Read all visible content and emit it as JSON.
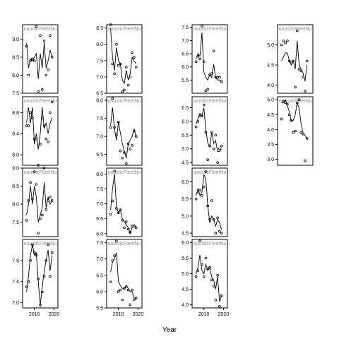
{
  "chart_data": {
    "type": "scatter",
    "xlabel": "Year",
    "panels": [
      {
        "row": 0,
        "col": 0,
        "title": "oousticFleetNu",
        "xlim": [
          2004,
          2022
        ],
        "ylim": [
          7.5,
          9.4
        ],
        "yticks": [
          "7.5",
          "8.0",
          "8.5",
          "9.0"
        ],
        "xticks": [],
        "yticks_side": "left",
        "x": [
          2006,
          2007,
          2008,
          2009,
          2010,
          2011,
          2012,
          2013,
          2014,
          2015,
          2016,
          2017,
          2018,
          2019
        ],
        "points": [
          8.8,
          8.0,
          8.4,
          8.45,
          8.4,
          9.35,
          7.55,
          9.1,
          7.6,
          8.95,
          8.0,
          8.15,
          9.1,
          8.5
        ],
        "fit": [
          8.9,
          8.2,
          8.45,
          8.4,
          8.5,
          8.6,
          7.9,
          8.6,
          8.2,
          8.9,
          8.2,
          8.4,
          8.7,
          8.5
        ]
      },
      {
        "row": 0,
        "col": 1,
        "title": "oousticFleetNu",
        "xlim": [
          2004,
          2022
        ],
        "ylim": [
          6.5,
          8.6
        ],
        "yticks": [
          "6.5",
          "7.0",
          "7.5",
          "8.0",
          "8.5"
        ],
        "xticks": [],
        "yticks_side": "left",
        "x": [
          2006,
          2007,
          2008,
          2009,
          2010,
          2011,
          2012,
          2013,
          2014,
          2015,
          2016,
          2017,
          2018,
          2019
        ],
        "points": [
          8.6,
          7.4,
          7.1,
          8.0,
          7.35,
          7.4,
          6.55,
          6.6,
          7.3,
          6.75,
          7.0,
          7.75,
          7.6,
          7.3
        ],
        "fit": [
          8.5,
          7.6,
          7.2,
          7.9,
          7.5,
          7.4,
          6.9,
          6.8,
          7.2,
          6.9,
          7.1,
          7.6,
          7.5,
          7.4
        ]
      },
      {
        "row": 0,
        "col": 2,
        "title": "oousticFleetNu",
        "xlim": [
          2004,
          2022
        ],
        "ylim": [
          5.0,
          7.6
        ],
        "yticks": [
          "5.5",
          "6.0",
          "6.5",
          "7.0",
          "7.5"
        ],
        "xticks": [],
        "yticks_side": "left",
        "x": [
          2006,
          2007,
          2008,
          2009,
          2010,
          2011,
          2012,
          2013,
          2014,
          2015,
          2016,
          2017,
          2018,
          2019
        ],
        "points": [
          6.2,
          6.4,
          6.3,
          7.55,
          6.2,
          5.1,
          5.15,
          5.7,
          5.75,
          6.6,
          5.6,
          5.6,
          5.6,
          5.45
        ],
        "fit": [
          6.3,
          6.5,
          6.4,
          7.3,
          5.8,
          5.6,
          5.5,
          5.7,
          5.6,
          6.1,
          5.6,
          5.5,
          5.5,
          5.4
        ]
      },
      {
        "row": 0,
        "col": 3,
        "title": "oousticFleetNu",
        "xlim": [
          2004,
          2022
        ],
        "ylim": [
          3.8,
          5.5
        ],
        "yticks": [
          "4.0",
          "4.5",
          "5.0"
        ],
        "xticks": [],
        "yticks_side": "left",
        "x": [
          2006,
          2007,
          2008,
          2009,
          2010,
          2011,
          2012,
          2013,
          2014,
          2015,
          2016,
          2017,
          2018,
          2019
        ],
        "points": [
          5.0,
          5.1,
          5.05,
          5.1,
          4.6,
          4.55,
          4.6,
          3.95,
          5.35,
          4.4,
          4.35,
          4.2,
          3.85,
          4.6
        ],
        "fit": [
          4.6,
          4.7,
          4.8,
          4.8,
          4.6,
          4.5,
          4.6,
          4.4,
          5.1,
          4.5,
          4.4,
          4.3,
          4.1,
          4.5
        ]
      },
      {
        "row": 1,
        "col": 0,
        "title": "oousticFleetNu",
        "xlim": [
          2004,
          2022
        ],
        "ylim": [
          7.8,
          9.1
        ],
        "yticks": [
          "8.0",
          "8.4",
          "8.8"
        ],
        "xticks": [],
        "yticks_side": "left",
        "x": [
          2006,
          2007,
          2008,
          2009,
          2010,
          2011,
          2012,
          2013,
          2014,
          2015,
          2016,
          2017,
          2018,
          2019
        ],
        "points": [
          8.55,
          8.55,
          8.8,
          8.7,
          8.3,
          8.3,
          7.8,
          8.2,
          8.7,
          8.55,
          8.3,
          8.25,
          8.8,
          9.0
        ],
        "fit": [
          8.6,
          8.9,
          8.6,
          8.9,
          8.2,
          8.4,
          8.1,
          8.4,
          8.9,
          8.5,
          8.6,
          8.4,
          8.6,
          8.7
        ]
      },
      {
        "row": 1,
        "col": 1,
        "title": "oousticFleetNu",
        "xlim": [
          2004,
          2022
        ],
        "ylim": [
          6.2,
          8.1
        ],
        "yticks": [
          "6.5",
          "7.0",
          "7.5",
          "8.0"
        ],
        "xticks": [],
        "yticks_side": "left",
        "x": [
          2006,
          2007,
          2008,
          2009,
          2010,
          2011,
          2012,
          2013,
          2014,
          2015,
          2016,
          2017,
          2018,
          2019
        ],
        "points": [
          7.25,
          8.05,
          7.25,
          7.05,
          7.4,
          6.6,
          6.4,
          6.55,
          6.25,
          6.8,
          6.65,
          6.75,
          7.15,
          7.0
        ],
        "fit": [
          7.3,
          7.8,
          7.2,
          6.9,
          7.4,
          7.1,
          6.8,
          6.6,
          6.4,
          6.8,
          6.9,
          7.0,
          7.2,
          7.0
        ]
      },
      {
        "row": 1,
        "col": 2,
        "title": "oousticFleetNu",
        "xlim": [
          2004,
          2022
        ],
        "ylim": [
          4.4,
          6.9
        ],
        "yticks": [
          "4.5",
          "5.0",
          "5.5",
          "6.0",
          "6.5"
        ],
        "xticks": [],
        "yticks_side": "left",
        "x": [
          2006,
          2007,
          2008,
          2009,
          2010,
          2011,
          2012,
          2013,
          2014,
          2015,
          2016,
          2017,
          2018,
          2019
        ],
        "points": [
          5.8,
          6.0,
          6.2,
          6.2,
          6.6,
          5.6,
          4.6,
          5.1,
          5.6,
          5.0,
          5.5,
          4.5,
          5.0,
          5.1
        ],
        "fit": [
          5.9,
          6.1,
          6.3,
          6.2,
          6.5,
          5.7,
          5.2,
          5.1,
          5.6,
          5.2,
          5.3,
          4.9,
          4.9,
          5.0
        ]
      },
      {
        "row": 1,
        "col": 3,
        "title": "oousticFleetNu",
        "xlim": [
          2004,
          2022
        ],
        "ylim": [
          2.8,
          5.1
        ],
        "yticks": [
          "3.0",
          "3.5",
          "4.0",
          "4.5",
          "5.0"
        ],
        "xticks": [],
        "yticks_side": "left",
        "x": [
          2006,
          2007,
          2008,
          2009,
          2010,
          2011,
          2012,
          2013,
          2014,
          2015,
          2016,
          2017,
          2018,
          2019
        ],
        "points": [
          4.35,
          4.95,
          4.9,
          4.85,
          4.5,
          4.3,
          3.9,
          3.95,
          4.9,
          5.0,
          3.9,
          3.85,
          2.95,
          3.7
        ],
        "fit": [
          4.9,
          4.9,
          5.0,
          4.8,
          4.6,
          4.3,
          4.3,
          4.5,
          4.9,
          4.7,
          4.2,
          3.9,
          3.8,
          3.7
        ]
      },
      {
        "row": 2,
        "col": 0,
        "title": "oousticFleetNu",
        "xlim": [
          2004,
          2022
        ],
        "ylim": [
          7.1,
          9.0
        ],
        "yticks": [
          "7.5",
          "8.0",
          "8.5",
          "9.0"
        ],
        "xticks": [],
        "yticks_side": "left",
        "x": [
          2006,
          2007,
          2008,
          2009,
          2010,
          2011,
          2012,
          2013,
          2014,
          2015,
          2016,
          2017,
          2018,
          2019
        ],
        "points": [
          7.55,
          8.1,
          8.6,
          8.15,
          8.9,
          8.55,
          7.2,
          7.6,
          7.7,
          9.0,
          7.85,
          8.1,
          8.2,
          8.1
        ],
        "fit": [
          7.7,
          8.0,
          8.5,
          8.0,
          8.5,
          8.2,
          7.5,
          7.7,
          7.9,
          8.6,
          7.9,
          8.2,
          8.0,
          8.1
        ]
      },
      {
        "row": 2,
        "col": 1,
        "title": "oousticFleetNu",
        "xlim": [
          2004,
          2022
        ],
        "ylim": [
          5.9,
          8.2
        ],
        "yticks": [
          "6.0",
          "6.5",
          "7.0",
          "7.5",
          "8.0"
        ],
        "xticks": [],
        "yticks_side": "left",
        "x": [
          2006,
          2007,
          2008,
          2009,
          2010,
          2011,
          2012,
          2013,
          2014,
          2015,
          2016,
          2017,
          2018,
          2019
        ],
        "points": [
          6.65,
          7.1,
          8.1,
          6.85,
          6.7,
          6.8,
          6.45,
          6.2,
          6.4,
          6.15,
          6.05,
          6.25,
          6.25,
          6.2
        ],
        "fit": [
          6.8,
          7.5,
          8.0,
          6.9,
          6.7,
          6.8,
          6.5,
          6.4,
          6.3,
          6.2,
          6.0,
          6.2,
          6.3,
          6.2
        ]
      },
      {
        "row": 2,
        "col": 2,
        "title": "oousticFleetNu",
        "xlim": [
          2004,
          2022
        ],
        "ylim": [
          4.4,
          6.4
        ],
        "yticks": [
          "4.5",
          "5.0",
          "5.5",
          "6.0"
        ],
        "xticks": [],
        "yticks_side": "left",
        "x": [
          2006,
          2007,
          2008,
          2009,
          2010,
          2011,
          2012,
          2013,
          2014,
          2015,
          2016,
          2017,
          2018,
          2019
        ],
        "points": [
          5.5,
          5.7,
          5.75,
          5.6,
          5.85,
          6.3,
          5.3,
          4.9,
          5.45,
          4.9,
          4.5,
          4.95,
          4.55,
          4.5
        ],
        "fit": [
          5.6,
          5.8,
          5.6,
          5.7,
          6.2,
          6.1,
          5.3,
          4.8,
          5.0,
          4.9,
          4.7,
          4.9,
          4.8,
          4.6
        ]
      },
      {
        "row": 3,
        "col": 0,
        "title": "oousticFleetNu",
        "xlim": [
          2004,
          2022
        ],
        "ylim": [
          6.9,
          8.2
        ],
        "yticks": [
          "7.0",
          "7.4",
          "7.8"
        ],
        "xticks": [
          "2010",
          "2020"
        ],
        "yticks_side": "left",
        "x": [
          2006,
          2007,
          2008,
          2009,
          2010,
          2011,
          2012,
          2013,
          2014,
          2015,
          2016,
          2017,
          2018,
          2019
        ],
        "points": [
          7.3,
          7.4,
          7.8,
          8.1,
          7.95,
          7.9,
          7.45,
          6.95,
          7.2,
          7.5,
          7.8,
          8.1,
          7.5,
          7.95
        ],
        "fit": [
          7.2,
          7.5,
          7.9,
          8.1,
          7.9,
          7.95,
          7.4,
          6.95,
          7.3,
          7.6,
          7.8,
          8.0,
          7.6,
          7.9
        ]
      },
      {
        "row": 3,
        "col": 1,
        "title": "oousticFleetNu",
        "xlim": [
          2004,
          2022
        ],
        "ylim": [
          5.5,
          7.6
        ],
        "yticks": [
          "5.5",
          "6.0",
          "6.5",
          "7.0",
          "7.5"
        ],
        "xticks": [
          "2010",
          "2020"
        ],
        "yticks_side": "left",
        "x": [
          2006,
          2007,
          2008,
          2009,
          2010,
          2011,
          2012,
          2013,
          2014,
          2015,
          2016,
          2017,
          2018,
          2019
        ],
        "points": [
          6.3,
          6.95,
          7.1,
          7.55,
          6.0,
          6.05,
          5.75,
          6.1,
          6.15,
          6.05,
          5.6,
          6.05,
          5.75,
          5.8
        ],
        "fit": [
          6.6,
          6.9,
          7.0,
          7.2,
          6.3,
          6.2,
          6.1,
          6.1,
          6.2,
          6.1,
          6.0,
          6.0,
          5.8,
          5.8
        ]
      },
      {
        "row": 3,
        "col": 2,
        "title": "oousticFleetNu",
        "xlim": [
          2004,
          2022
        ],
        "ylim": [
          3.9,
          6.1
        ],
        "yticks": [
          "4.0",
          "4.5",
          "5.0",
          "5.5",
          "6.0"
        ],
        "xticks": [
          "2010",
          "2020"
        ],
        "yticks_side": "left",
        "x": [
          2006,
          2007,
          2008,
          2009,
          2010,
          2011,
          2012,
          2013,
          2014,
          2015,
          2016,
          2017,
          2018,
          2019
        ],
        "points": [
          4.9,
          5.1,
          6.05,
          5.3,
          4.9,
          5.5,
          5.15,
          5.2,
          4.8,
          4.6,
          4.15,
          4.95,
          3.95,
          4.3
        ],
        "fit": [
          5.0,
          5.2,
          5.6,
          5.1,
          5.0,
          5.3,
          5.1,
          5.2,
          4.9,
          4.8,
          4.5,
          4.9,
          4.1,
          4.3
        ]
      }
    ]
  }
}
